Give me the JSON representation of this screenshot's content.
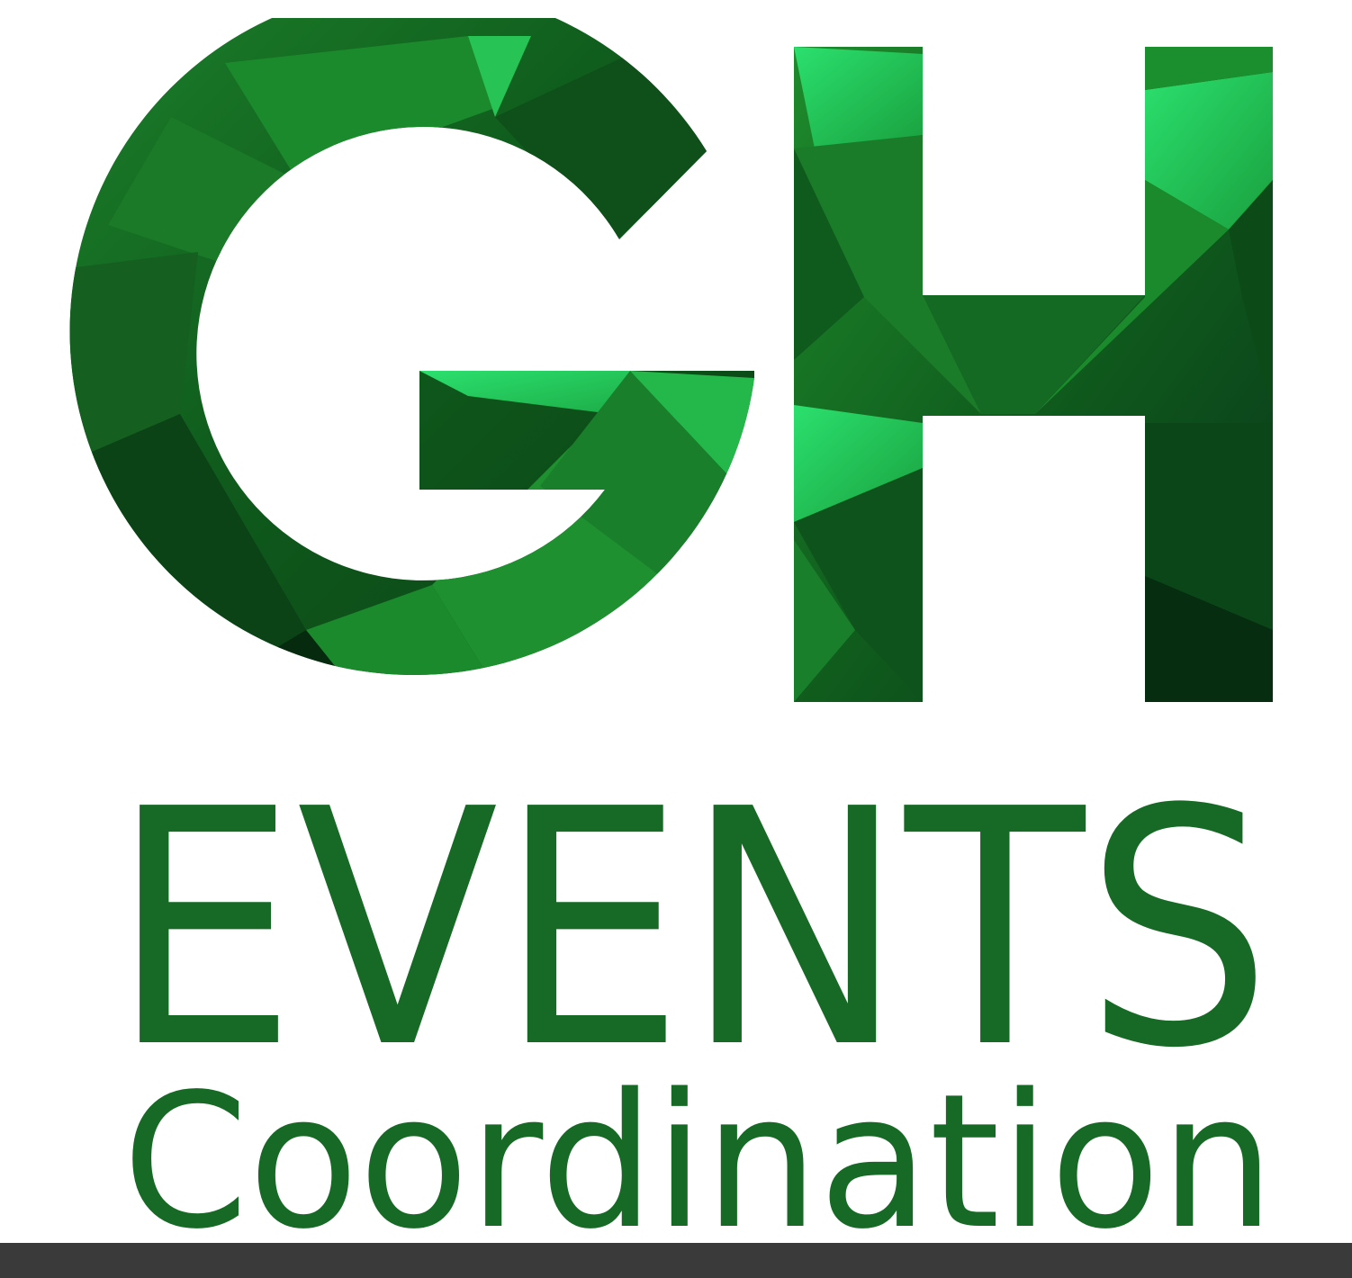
{
  "logo": {
    "monogram": "GH",
    "line1": "EVENTS",
    "line2": "Coordination"
  },
  "colors": {
    "background": "#ffffff",
    "text_green": "#176a25",
    "gem_dark": "#0a3d14",
    "gem_mid": "#1f8a2c",
    "gem_light": "#2be06e",
    "bottom_bar": "#3a3a3a"
  }
}
